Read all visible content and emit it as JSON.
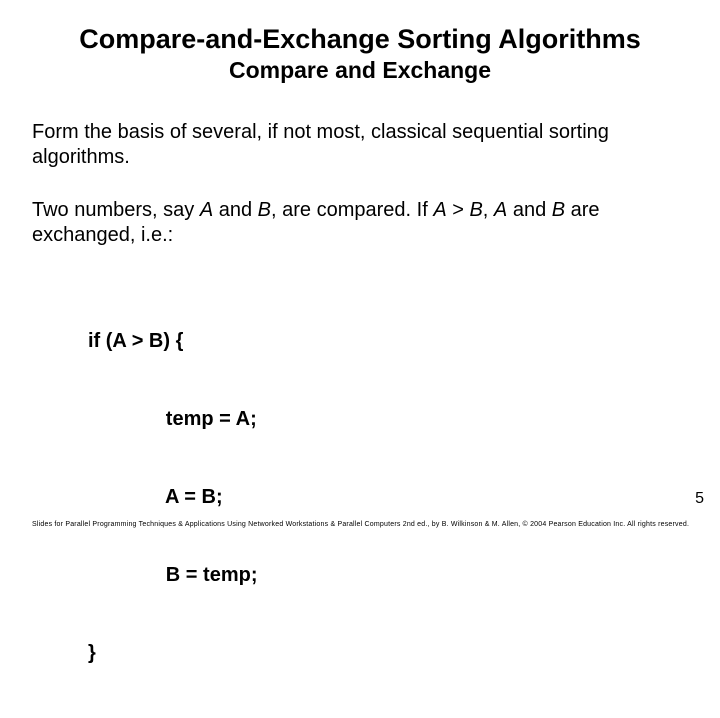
{
  "title": "Compare-and-Exchange Sorting Algorithms",
  "subtitle": "Compare and Exchange",
  "para1": "Form the basis of several, if not most, classical sequential sorting algorithms.",
  "para2_pre": "Two numbers, say ",
  "para2_A1": "A",
  "para2_mid1": " and ",
  "para2_B1": "B",
  "para2_mid2": ", are compared. If ",
  "para2_A2": "A",
  "para2_gt": " > ",
  "para2_B2": "B",
  "para2_mid3": ", ",
  "para2_A3": "A",
  "para2_mid4": " and ",
  "para2_B3": "B",
  "para2_end": " are exchanged, i.e.:",
  "code": {
    "l1": "if (A > B) {",
    "l2": "              temp = A;",
    "l3": "              A = B;",
    "l4": "              B = temp;",
    "l5": "}"
  },
  "page_num": "5",
  "footer": "Slides for Parallel Programming Techniques & Applications Using Networked Workstations & Parallel Computers 2nd ed., by B. Wilkinson & M. Allen, © 2004 Pearson Education Inc. All rights reserved."
}
